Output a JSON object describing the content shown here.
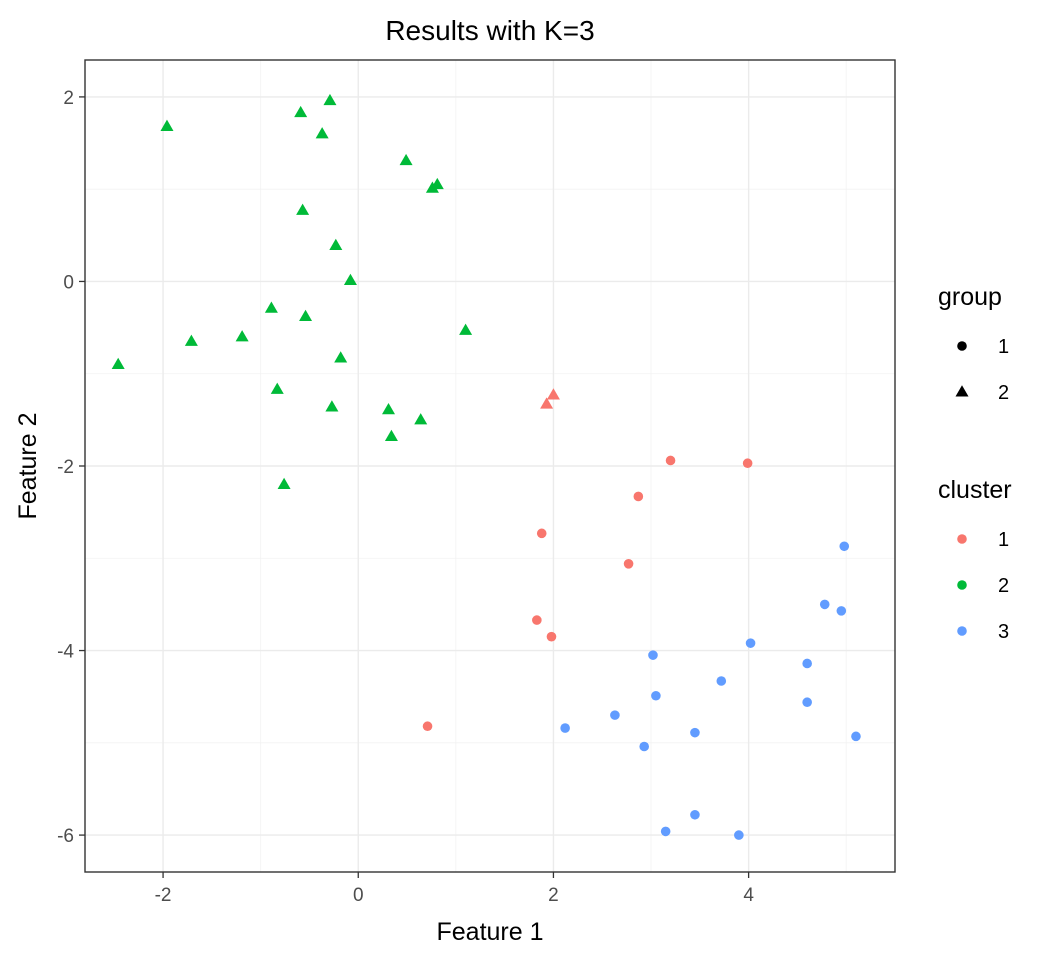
{
  "chart_data": {
    "type": "scatter",
    "title": "Results with K=3",
    "xlabel": "Feature 1",
    "ylabel": "Feature 2",
    "xlim": [
      -2.8,
      5.5
    ],
    "ylim": [
      -6.4,
      2.4
    ],
    "xticks": [
      -2,
      0,
      2,
      4
    ],
    "xtick_labels": [
      "-2",
      "0",
      "2",
      "4"
    ],
    "yticks": [
      -6,
      -4,
      -2,
      0,
      2
    ],
    "ytick_labels": [
      "-6",
      "-4",
      "-2",
      "0",
      "2"
    ],
    "grid": true,
    "legends": [
      {
        "title": "group",
        "entries": [
          {
            "label": "1",
            "shape": "circle"
          },
          {
            "label": "2",
            "shape": "triangle"
          }
        ]
      },
      {
        "title": "cluster",
        "entries": [
          {
            "label": "1",
            "color": "#F8766D"
          },
          {
            "label": "2",
            "color": "#00BA38"
          },
          {
            "label": "3",
            "color": "#619CFF"
          }
        ]
      }
    ],
    "colors": {
      "1": "#F8766D",
      "2": "#00BA38",
      "3": "#619CFF"
    },
    "points": [
      {
        "x": -1.96,
        "y": 1.68,
        "group": 2,
        "cluster": 2
      },
      {
        "x": -0.59,
        "y": 1.83,
        "group": 2,
        "cluster": 2
      },
      {
        "x": -0.29,
        "y": 1.96,
        "group": 2,
        "cluster": 2
      },
      {
        "x": -0.37,
        "y": 1.6,
        "group": 2,
        "cluster": 2
      },
      {
        "x": 0.49,
        "y": 1.31,
        "group": 2,
        "cluster": 2
      },
      {
        "x": 0.76,
        "y": 1.01,
        "group": 2,
        "cluster": 2
      },
      {
        "x": 0.81,
        "y": 1.05,
        "group": 2,
        "cluster": 2
      },
      {
        "x": -0.57,
        "y": 0.77,
        "group": 2,
        "cluster": 2
      },
      {
        "x": -0.23,
        "y": 0.39,
        "group": 2,
        "cluster": 2
      },
      {
        "x": -0.08,
        "y": 0.01,
        "group": 2,
        "cluster": 2
      },
      {
        "x": -0.89,
        "y": -0.29,
        "group": 2,
        "cluster": 2
      },
      {
        "x": -0.54,
        "y": -0.38,
        "group": 2,
        "cluster": 2
      },
      {
        "x": 1.1,
        "y": -0.53,
        "group": 2,
        "cluster": 2
      },
      {
        "x": -1.19,
        "y": -0.6,
        "group": 2,
        "cluster": 2
      },
      {
        "x": -1.71,
        "y": -0.65,
        "group": 2,
        "cluster": 2
      },
      {
        "x": -0.18,
        "y": -0.83,
        "group": 2,
        "cluster": 2
      },
      {
        "x": -2.46,
        "y": -0.9,
        "group": 2,
        "cluster": 2
      },
      {
        "x": -0.83,
        "y": -1.17,
        "group": 2,
        "cluster": 2
      },
      {
        "x": -0.27,
        "y": -1.36,
        "group": 2,
        "cluster": 2
      },
      {
        "x": 0.31,
        "y": -1.39,
        "group": 2,
        "cluster": 2
      },
      {
        "x": 0.64,
        "y": -1.5,
        "group": 2,
        "cluster": 2
      },
      {
        "x": 0.34,
        "y": -1.68,
        "group": 2,
        "cluster": 2
      },
      {
        "x": -0.76,
        "y": -2.2,
        "group": 2,
        "cluster": 2
      },
      {
        "x": 2.0,
        "y": -1.23,
        "group": 2,
        "cluster": 1
      },
      {
        "x": 1.93,
        "y": -1.33,
        "group": 2,
        "cluster": 1
      },
      {
        "x": 3.2,
        "y": -1.94,
        "group": 1,
        "cluster": 1
      },
      {
        "x": 3.99,
        "y": -1.97,
        "group": 1,
        "cluster": 1
      },
      {
        "x": 2.87,
        "y": -2.33,
        "group": 1,
        "cluster": 1
      },
      {
        "x": 1.88,
        "y": -2.73,
        "group": 1,
        "cluster": 1
      },
      {
        "x": 2.77,
        "y": -3.06,
        "group": 1,
        "cluster": 1
      },
      {
        "x": 1.83,
        "y": -3.67,
        "group": 1,
        "cluster": 1
      },
      {
        "x": 1.98,
        "y": -3.85,
        "group": 1,
        "cluster": 1
      },
      {
        "x": 0.71,
        "y": -4.82,
        "group": 1,
        "cluster": 1
      },
      {
        "x": 4.98,
        "y": -2.87,
        "group": 1,
        "cluster": 3
      },
      {
        "x": 4.78,
        "y": -3.5,
        "group": 1,
        "cluster": 3
      },
      {
        "x": 4.95,
        "y": -3.57,
        "group": 1,
        "cluster": 3
      },
      {
        "x": 4.02,
        "y": -3.92,
        "group": 1,
        "cluster": 3
      },
      {
        "x": 3.02,
        "y": -4.05,
        "group": 1,
        "cluster": 3
      },
      {
        "x": 4.6,
        "y": -4.14,
        "group": 1,
        "cluster": 3
      },
      {
        "x": 3.72,
        "y": -4.33,
        "group": 1,
        "cluster": 3
      },
      {
        "x": 3.05,
        "y": -4.49,
        "group": 1,
        "cluster": 3
      },
      {
        "x": 4.6,
        "y": -4.56,
        "group": 1,
        "cluster": 3
      },
      {
        "x": 2.63,
        "y": -4.7,
        "group": 1,
        "cluster": 3
      },
      {
        "x": 2.12,
        "y": -4.84,
        "group": 1,
        "cluster": 3
      },
      {
        "x": 3.45,
        "y": -4.89,
        "group": 1,
        "cluster": 3
      },
      {
        "x": 5.1,
        "y": -4.93,
        "group": 1,
        "cluster": 3
      },
      {
        "x": 2.93,
        "y": -5.04,
        "group": 1,
        "cluster": 3
      },
      {
        "x": 3.45,
        "y": -5.78,
        "group": 1,
        "cluster": 3
      },
      {
        "x": 3.15,
        "y": -5.96,
        "group": 1,
        "cluster": 3
      },
      {
        "x": 3.9,
        "y": -6.0,
        "group": 1,
        "cluster": 3
      }
    ]
  }
}
